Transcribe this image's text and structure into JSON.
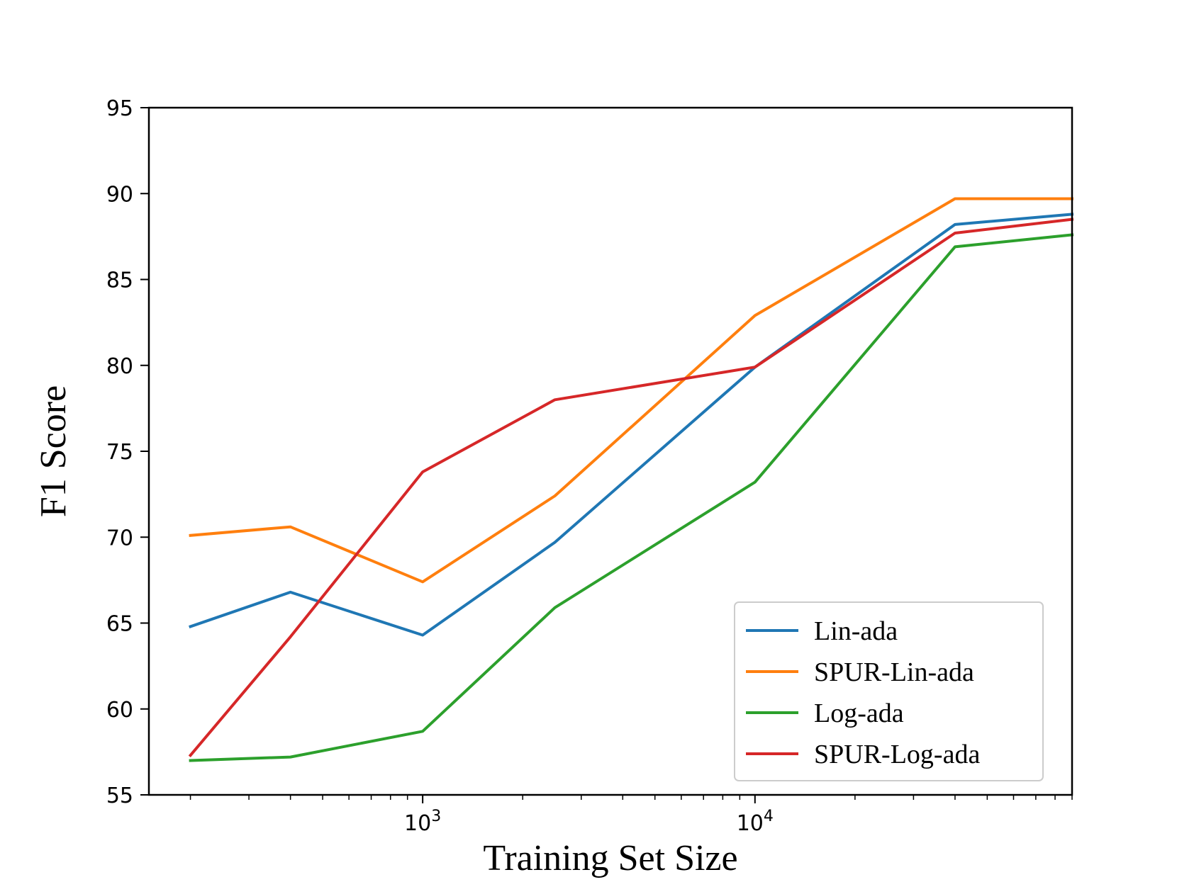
{
  "chart_data": {
    "type": "line",
    "title": "",
    "xlabel": "Training Set Size",
    "ylabel": "F1 Score",
    "xscale": "log",
    "xlim": [
      150,
      90000
    ],
    "ylim": [
      55,
      95
    ],
    "yticks": [
      55,
      60,
      65,
      70,
      75,
      80,
      85,
      90,
      95
    ],
    "ytick_labels": [
      "55",
      "60",
      "65",
      "70",
      "75",
      "80",
      "85",
      "90",
      "95"
    ],
    "xticks_major": [
      1000,
      10000
    ],
    "xtick_labels": [
      {
        "base": "10",
        "exp": "3"
      },
      {
        "base": "10",
        "exp": "4"
      }
    ],
    "x": [
      200,
      400,
      1000,
      2500,
      10000,
      40000,
      90000
    ],
    "grid": false,
    "legend_position": "lower-right",
    "series": [
      {
        "name": "Lin-ada",
        "color": "#1f77b4",
        "values": [
          64.8,
          66.8,
          64.3,
          69.7,
          79.9,
          88.2,
          88.8
        ]
      },
      {
        "name": "SPUR-Lin-ada",
        "color": "#ff7f0e",
        "values": [
          70.1,
          70.6,
          67.4,
          72.4,
          82.9,
          89.7,
          89.7
        ]
      },
      {
        "name": "Log-ada",
        "color": "#2ca02c",
        "values": [
          57.0,
          57.2,
          58.7,
          65.9,
          73.2,
          86.9,
          87.6
        ]
      },
      {
        "name": "SPUR-Log-ada",
        "color": "#d62728",
        "values": [
          57.3,
          64.2,
          73.8,
          78.0,
          79.9,
          87.7,
          88.5
        ]
      }
    ]
  }
}
